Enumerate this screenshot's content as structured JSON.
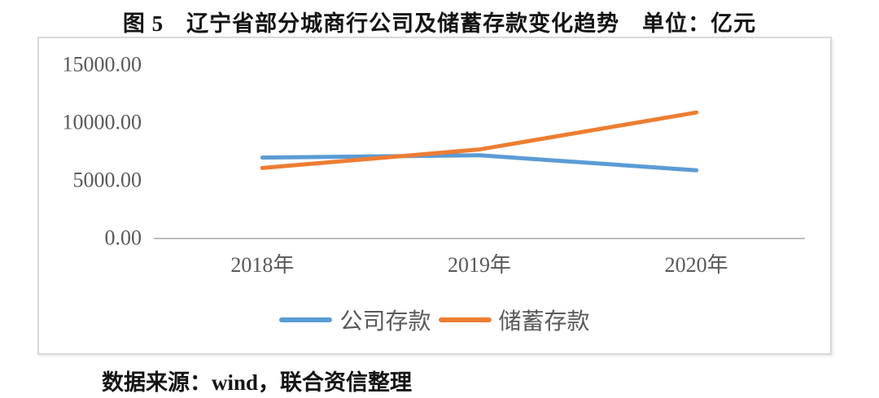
{
  "figure": {
    "title": "图 5　辽宁省部分城商行公司及储蓄存款变化趋势　单位：亿元",
    "source_note": "数据来源：wind，联合资信整理"
  },
  "chart_data": {
    "type": "line",
    "title": "图5 辽宁省部分城商行公司及储蓄存款变化趋势",
    "unit": "亿元",
    "categories": [
      "2018年",
      "2019年",
      "2020年"
    ],
    "series": [
      {
        "name": "公司存款",
        "color": "#5B9BD5",
        "values": [
          7000,
          7200,
          5900
        ]
      },
      {
        "name": "储蓄存款",
        "color": "#ED7D31",
        "values": [
          6100,
          7700,
          10900
        ]
      }
    ],
    "ylim": [
      0,
      15000
    ],
    "yticks": [
      {
        "value": 15000,
        "label": "15000.00"
      },
      {
        "value": 10000,
        "label": "10000.00"
      },
      {
        "value": 5000,
        "label": "5000.00"
      },
      {
        "value": 0,
        "label": "0.00"
      }
    ],
    "grid": false,
    "legend_position": "bottom",
    "axis_color": "#BFBFBF",
    "tick_text_color": "#595959"
  }
}
